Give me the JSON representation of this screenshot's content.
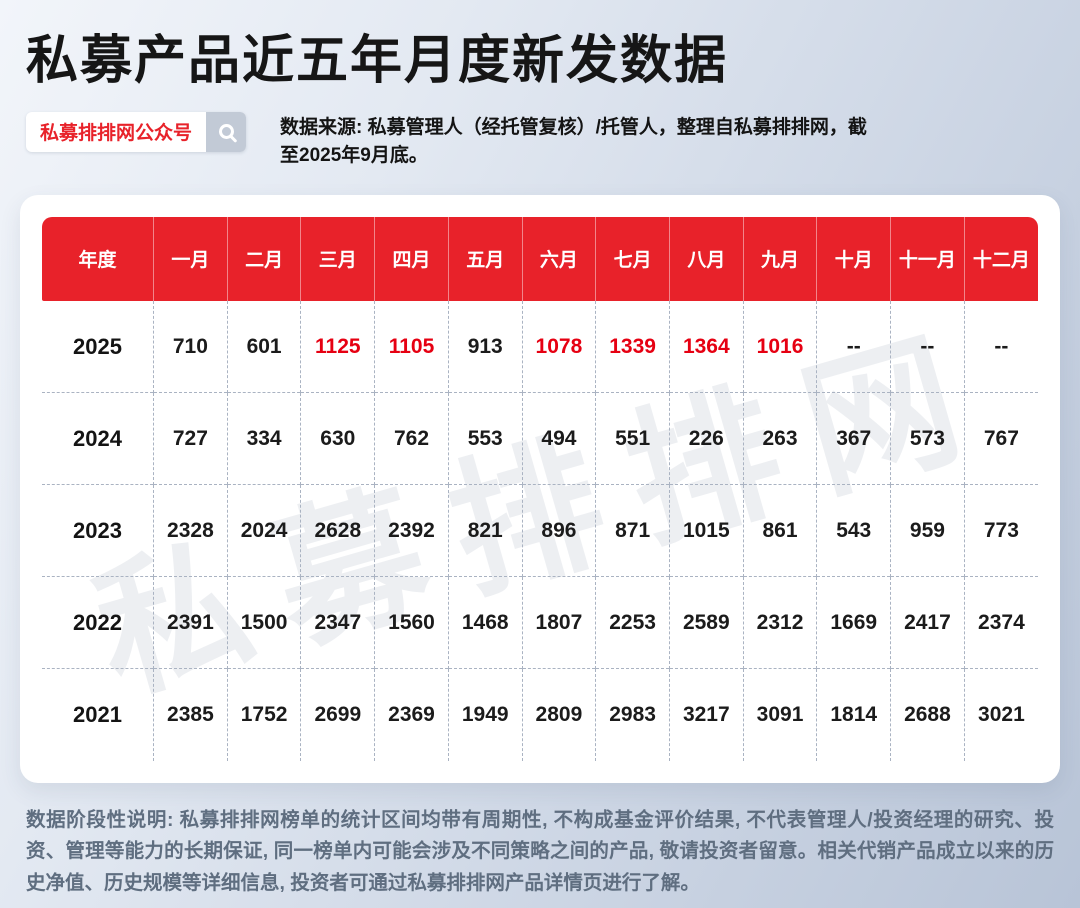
{
  "page": {
    "title": "私募产品近五年月度新发数据",
    "badge_label": "私募排排网公众号",
    "source_text": "数据来源: 私募管理人（经托管复核）/托管人，整理自私募排排网，截至2025年9月底。",
    "watermark": "私募排排网",
    "footer_text": "数据阶段性说明: 私募排排网榜单的统计区间均带有周期性, 不构成基金评价结果, 不代表管理人/投资经理的研究、投资、管理等能力的长期保证, 同一榜单内可能会涉及不同策略之间的产品, 敬请投资者留意。相关代销产品成立以来的历史净值、历史规模等详细信息, 投资者可通过私募排排网产品详情页进行了解。"
  },
  "colors": {
    "header_red": "#e8222a",
    "highlight_red": "#e60012",
    "text_dark": "#1b1b1b",
    "footer_gray": "#5f6e80"
  },
  "icons": {
    "search": "magnifier-icon"
  },
  "chart_data": {
    "type": "table",
    "title": "私募产品近五年月度新发数据",
    "columns": [
      "年度",
      "一月",
      "二月",
      "三月",
      "四月",
      "五月",
      "六月",
      "七月",
      "八月",
      "九月",
      "十月",
      "十一月",
      "十二月"
    ],
    "rows": [
      {
        "year": "2025",
        "values": [
          "710",
          "601",
          "1125",
          "1105",
          "913",
          "1078",
          "1339",
          "1364",
          "1016",
          "--",
          "--",
          "--"
        ],
        "highlight": [
          2,
          3,
          5,
          6,
          7,
          8
        ]
      },
      {
        "year": "2024",
        "values": [
          "727",
          "334",
          "630",
          "762",
          "553",
          "494",
          "551",
          "226",
          "263",
          "367",
          "573",
          "767"
        ],
        "highlight": []
      },
      {
        "year": "2023",
        "values": [
          "2328",
          "2024",
          "2628",
          "2392",
          "821",
          "896",
          "871",
          "1015",
          "861",
          "543",
          "959",
          "773"
        ],
        "highlight": []
      },
      {
        "year": "2022",
        "values": [
          "2391",
          "1500",
          "2347",
          "1560",
          "1468",
          "1807",
          "2253",
          "2589",
          "2312",
          "1669",
          "2417",
          "2374"
        ],
        "highlight": []
      },
      {
        "year": "2021",
        "values": [
          "2385",
          "1752",
          "2699",
          "2369",
          "1949",
          "2809",
          "2983",
          "3217",
          "3091",
          "1814",
          "2688",
          "3021"
        ],
        "highlight": []
      }
    ]
  }
}
